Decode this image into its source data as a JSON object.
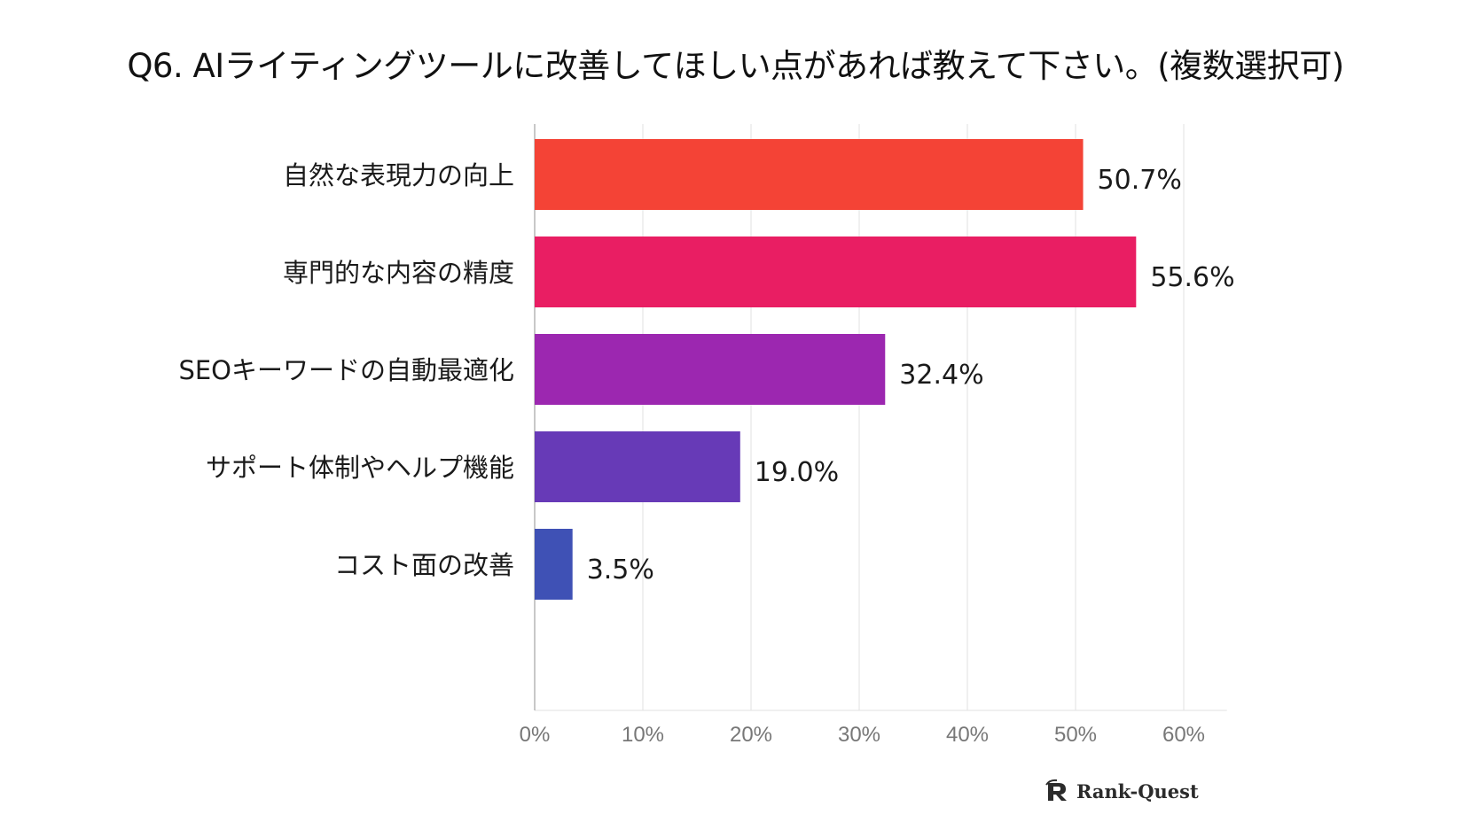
{
  "title": "Q6. AIライティングツールに改善してほしい点があれば教えて下さい。(複数選択可)",
  "chart_data": {
    "type": "bar",
    "orientation": "horizontal",
    "title": "Q6. AIライティングツールに改善してほしい点があれば教えて下さい。(複数選択可)",
    "categories": [
      "自然な表現力の向上",
      "専門的な内容の精度",
      "SEOキーワードの自動最適化",
      "サポート体制やヘルプ機能",
      "コスト面の改善"
    ],
    "values": [
      50.7,
      55.6,
      32.4,
      19.0,
      3.5
    ],
    "value_labels": [
      "50.7%",
      "55.6%",
      "32.4%",
      "19.0%",
      "3.5%"
    ],
    "colors": [
      "#f44336",
      "#e91e63",
      "#9c27b0",
      "#673ab7",
      "#3f51b5"
    ],
    "xlim": [
      0,
      64
    ],
    "x_ticks": [
      0,
      10,
      20,
      30,
      40,
      50,
      60
    ],
    "x_tick_labels": [
      "0%",
      "10%",
      "20%",
      "30%",
      "40%",
      "50%",
      "60%"
    ],
    "xlabel": "",
    "ylabel": "",
    "grid": true
  },
  "logo": {
    "text": "Rank-Quest",
    "icon": "rank-quest-logo-icon"
  },
  "colors": {
    "grid": "#e2e2e2",
    "axis": "#b5b5b5",
    "tick_text": "#777777",
    "category_text": "#1a1a1a",
    "value_text": "#1a1a1a"
  }
}
